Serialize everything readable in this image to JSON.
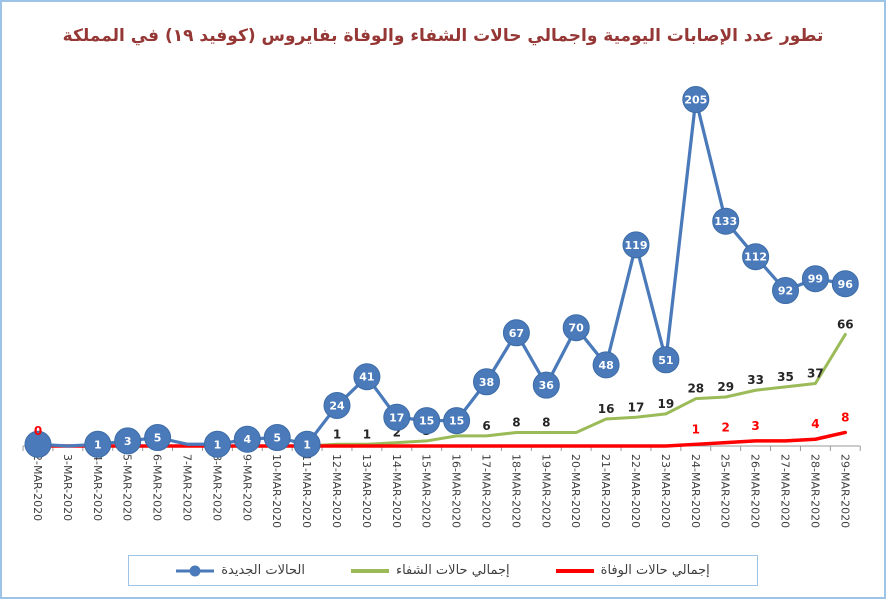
{
  "title": "تطور عدد الإصابات اليومية واجمالي حالات الشفاء والوفاة بفايروس (كوفيد ١٩) في المملكة",
  "colors": {
    "new_cases": "#4a7aba",
    "recoveries": "#9bbb59",
    "deaths": "#ff0000",
    "title": "#953735",
    "border": "#9dc3e6",
    "axis": "#9a9a9a"
  },
  "legend": [
    {
      "label": "الحالات الجديدة",
      "series": "new_cases"
    },
    {
      "label": "إجمالي حالات الشفاء",
      "series": "recoveries"
    },
    {
      "label": "إجمالي حالات الوفاة",
      "series": "deaths"
    }
  ],
  "chart_data": {
    "type": "line",
    "title": "تطور عدد الإصابات اليومية واجمالي حالات الشفاء والوفاة بفايروس (كوفيد ١٩) في المملكة",
    "xlabel": "",
    "ylabel": "",
    "ylim": [
      0,
      220
    ],
    "grid": false,
    "legend_position": "bottom",
    "x_tick_rotation": 90,
    "categories": [
      "2-MAR-2020",
      "3-MAR-2020",
      "4-MAR-2020",
      "5-MAR-2020",
      "6-MAR-2020",
      "7-MAR-2020",
      "8-MAR-2020",
      "9-MAR-2020",
      "10-MAR-2020",
      "11-MAR-2020",
      "12-MAR-2020",
      "13-MAR-2020",
      "14-MAR-2020",
      "15-MAR-2020",
      "16-MAR-2020",
      "17-MAR-2020",
      "18-MAR-2020",
      "19-MAR-2020",
      "20-MAR-2020",
      "21-MAR-2020",
      "22-MAR-2020",
      "23-MAR-2020",
      "24-MAR-2020",
      "25-MAR-2020",
      "26-MAR-2020",
      "27-MAR-2020",
      "28-MAR-2020",
      "29-MAR-2020"
    ],
    "series": [
      {
        "id": "new_cases",
        "name": "الحالات الجديدة",
        "color": "#4a7aba",
        "marker": "circle",
        "stroke_width": 3.25,
        "values": [
          1,
          0,
          1,
          3,
          5,
          1,
          1,
          4,
          5,
          1,
          24,
          41,
          17,
          15,
          15,
          38,
          67,
          36,
          70,
          48,
          119,
          51,
          205,
          133,
          112,
          92,
          99,
          96
        ],
        "labels": [
          "",
          null,
          "1",
          "3",
          "5",
          null,
          "1",
          "4",
          "5",
          "1",
          "24",
          "41",
          "17",
          "15",
          "15",
          "38",
          "67",
          "36",
          "70",
          "48",
          "119",
          "51",
          "205",
          "133",
          "112",
          "92",
          "99",
          "96"
        ]
      },
      {
        "id": "recoveries",
        "name": "إجمالي حالات الشفاء",
        "color": "#9bbb59",
        "marker": "none",
        "stroke_width": 3,
        "label_color": "#262626",
        "label_dy": 6,
        "values": [
          0,
          0,
          0,
          0,
          0,
          0,
          0,
          0,
          0,
          0,
          1,
          1,
          2,
          3,
          6,
          6,
          8,
          8,
          8,
          16,
          17,
          19,
          28,
          29,
          33,
          35,
          37,
          66
        ],
        "labels": [
          null,
          null,
          null,
          null,
          null,
          null,
          null,
          null,
          null,
          null,
          "1",
          "1",
          "2",
          "3",
          "6",
          "6",
          "8",
          "8",
          null,
          "16",
          "17",
          "19",
          "28",
          "29",
          "33",
          "35",
          "37",
          "66"
        ]
      },
      {
        "id": "deaths",
        "name": "إجمالي حالات الوفاة",
        "color": "#ff0000",
        "marker": "none",
        "stroke_width": 3.5,
        "label_color": "#ff0000",
        "label_dy": 11,
        "values": [
          0,
          0,
          0,
          0,
          0,
          0,
          0,
          0,
          0,
          0,
          0,
          0,
          0,
          0,
          0,
          0,
          0,
          0,
          0,
          0,
          0,
          0,
          1,
          2,
          3,
          3,
          4,
          8
        ],
        "labels": [
          "0",
          null,
          null,
          null,
          null,
          null,
          null,
          null,
          null,
          null,
          null,
          null,
          null,
          null,
          null,
          null,
          null,
          null,
          null,
          null,
          null,
          null,
          "1",
          "2",
          "3",
          null,
          "4",
          "8"
        ]
      }
    ]
  }
}
